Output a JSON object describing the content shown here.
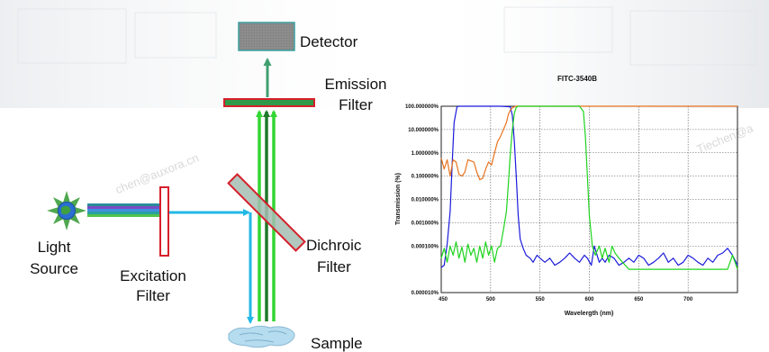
{
  "labels": {
    "detector": "Detector",
    "emission_line1": "Emission",
    "emission_line2": "Filter",
    "light_line1": "Light",
    "light_line2": "Source",
    "excitation_line1": "Excitation",
    "excitation_line2": "Filter",
    "dichroic_line1": "Dichroic",
    "dichroic_line2": "Filter",
    "sample": "Sample"
  },
  "watermarks": [
    "chen@auxora.cn",
    "Tiechen@a"
  ],
  "colors": {
    "filter_outline": "#d6202b",
    "excitation_beam": "#22b8e6",
    "emission_beam_light": "#33d633",
    "emission_beam_dark": "#1f7a2a",
    "detector_beam": "#3f9f6f",
    "detector_fill": "#8c8c8c",
    "series_blue": "#1a1adb",
    "series_orange": "#e8731e",
    "series_green": "#1ed41e"
  },
  "icons": [
    "sun-icon",
    "sample-blob-icon",
    "detector-icon"
  ],
  "chart_data": {
    "type": "line",
    "title": "FITC-3540B",
    "xlabel": "Wavelergth (nm)",
    "ylabel": "Transmission (%)",
    "xlim": [
      400,
      700
    ],
    "ylim_log10": [
      -6,
      2
    ],
    "y_scale": "log",
    "grid": true,
    "x_ticks": [
      "450",
      "500",
      "550",
      "600",
      "650",
      "700"
    ],
    "y_ticks": [
      "100.000000%",
      "10.000000%",
      "1.000000%",
      "0.100000%",
      "0.010000%",
      "0.001000%",
      "0.000100%",
      "0.000010%"
    ],
    "series": [
      {
        "color": "#1a1adb",
        "x": [
          400,
          403,
          406,
          409,
          411,
          413,
          416,
          418,
          420,
          440,
          460,
          470,
          472,
          474,
          476,
          478,
          480,
          483,
          486,
          490,
          493,
          497,
          500,
          505,
          510,
          515,
          520,
          525,
          530,
          535,
          540,
          545,
          548,
          552,
          555,
          560,
          563,
          566,
          570,
          575,
          580,
          585,
          590,
          595,
          600,
          605,
          610,
          615,
          620,
          625,
          630,
          635,
          640,
          645,
          650,
          655,
          660,
          665,
          670,
          675,
          680,
          685,
          690,
          695,
          700
        ],
        "y": [
          1.2e-05,
          1.5e-05,
          0.00012,
          0.003,
          0.3,
          20,
          95,
          100,
          100,
          100,
          100,
          95,
          40,
          3,
          0.1,
          0.002,
          0.0002,
          8e-05,
          4e-05,
          3e-05,
          2e-05,
          4e-05,
          3e-05,
          2e-05,
          3e-05,
          1.5e-05,
          2e-05,
          3e-05,
          5e-05,
          3e-05,
          2e-05,
          4e-05,
          3e-05,
          1.5e-05,
          0.0001,
          2e-05,
          3e-05,
          2e-05,
          4e-05,
          3e-05,
          1.5e-05,
          2e-05,
          3e-05,
          2e-05,
          4e-05,
          3e-05,
          1.5e-05,
          2e-05,
          3e-05,
          5e-05,
          2e-05,
          3e-05,
          1.5e-05,
          2e-05,
          4e-05,
          3e-05,
          2e-05,
          1.5e-05,
          3e-05,
          2e-05,
          4e-05,
          5e-05,
          8e-05,
          4e-05,
          1.5e-05
        ]
      },
      {
        "color": "#e8731e",
        "x": [
          400,
          403,
          406,
          409,
          412,
          415,
          418,
          421,
          424,
          427,
          430,
          433,
          436,
          439,
          442,
          445,
          448,
          451,
          454,
          457,
          460,
          463,
          466,
          468,
          470,
          472,
          474,
          476,
          478,
          480,
          484,
          490,
          500,
          550,
          600,
          650,
          700
        ],
        "y": [
          0.6,
          0.2,
          0.5,
          0.1,
          0.5,
          0.4,
          0.12,
          0.1,
          0.15,
          0.5,
          0.45,
          0.4,
          0.15,
          0.07,
          0.08,
          0.2,
          0.4,
          0.3,
          1,
          3,
          5,
          10,
          20,
          45,
          70,
          85,
          95,
          100,
          100,
          100,
          100,
          100,
          100,
          100,
          100,
          100,
          100
        ]
      },
      {
        "color": "#1ed41e",
        "x": [
          400,
          403,
          406,
          409,
          412,
          415,
          418,
          421,
          424,
          427,
          430,
          433,
          436,
          439,
          442,
          445,
          448,
          451,
          454,
          457,
          460,
          463,
          466,
          468,
          470,
          472,
          474,
          476,
          478,
          480,
          500,
          520,
          540,
          544,
          546,
          548,
          550,
          553,
          556,
          560,
          563,
          566,
          570,
          573,
          576,
          580,
          590,
          600,
          610,
          620,
          630,
          640,
          650,
          660,
          670,
          680,
          690,
          695,
          700
        ],
        "y": [
          3e-05,
          8e-05,
          2e-05,
          0.0001,
          4e-05,
          0.00015,
          3e-05,
          9e-05,
          2e-05,
          0.00012,
          4e-05,
          8e-05,
          2e-05,
          0.0001,
          3e-05,
          0.00015,
          4e-05,
          0.0001,
          2e-05,
          8e-05,
          0.0001,
          0.0005,
          0.003,
          0.05,
          1,
          10,
          50,
          90,
          100,
          100,
          100,
          100,
          100,
          60,
          5,
          0.1,
          0.002,
          0.0001,
          4e-05,
          0.0001,
          3e-05,
          8e-05,
          2e-05,
          0.0001,
          5e-05,
          3e-05,
          1e-05,
          1e-05,
          1e-05,
          1e-05,
          1e-05,
          1e-05,
          1e-05,
          1e-05,
          1e-05,
          1e-05,
          1e-05,
          4e-05,
          1e-05
        ]
      }
    ]
  }
}
